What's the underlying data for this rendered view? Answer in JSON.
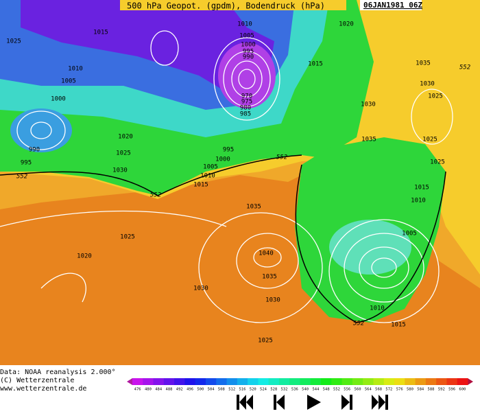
{
  "header": {
    "title": "500 hPa Geopot. (gpdm), Bodendruck (hPa)",
    "date": "06JAN1981 06Z"
  },
  "map": {
    "isobar_labels": [
      "1025",
      "1015",
      "1010",
      "1005",
      "1000",
      "995",
      "990",
      "1020",
      "1015",
      "1010",
      "1005",
      "1000",
      "1035",
      "1030",
      "1025",
      "970",
      "975",
      "980",
      "985",
      "1030",
      "1020",
      "1025",
      "1035",
      "1025",
      "990",
      "995",
      "995",
      "1000",
      "1005",
      "1030",
      "1010",
      "1015",
      "1025",
      "1015",
      "1010",
      "1035",
      "1025",
      "1005",
      "1020",
      "1040",
      "1035",
      "1030",
      "1030",
      "1010",
      "1015",
      "1025"
    ],
    "geopotential_labels": [
      "552",
      "552",
      "552",
      "552",
      "552"
    ]
  },
  "credits": [
    "Data: NOAA reanalysis 2.000°",
    "(C) Wetterzentrale",
    "www.wetterzentrale.de"
  ],
  "colorbar": {
    "labels": [
      476,
      480,
      484,
      488,
      492,
      496,
      500,
      504,
      508,
      512,
      516,
      520,
      524,
      528,
      532,
      536,
      540,
      544,
      548,
      552,
      556,
      560,
      564,
      568,
      572,
      576,
      580,
      584,
      588,
      592,
      596,
      600
    ]
  }
}
